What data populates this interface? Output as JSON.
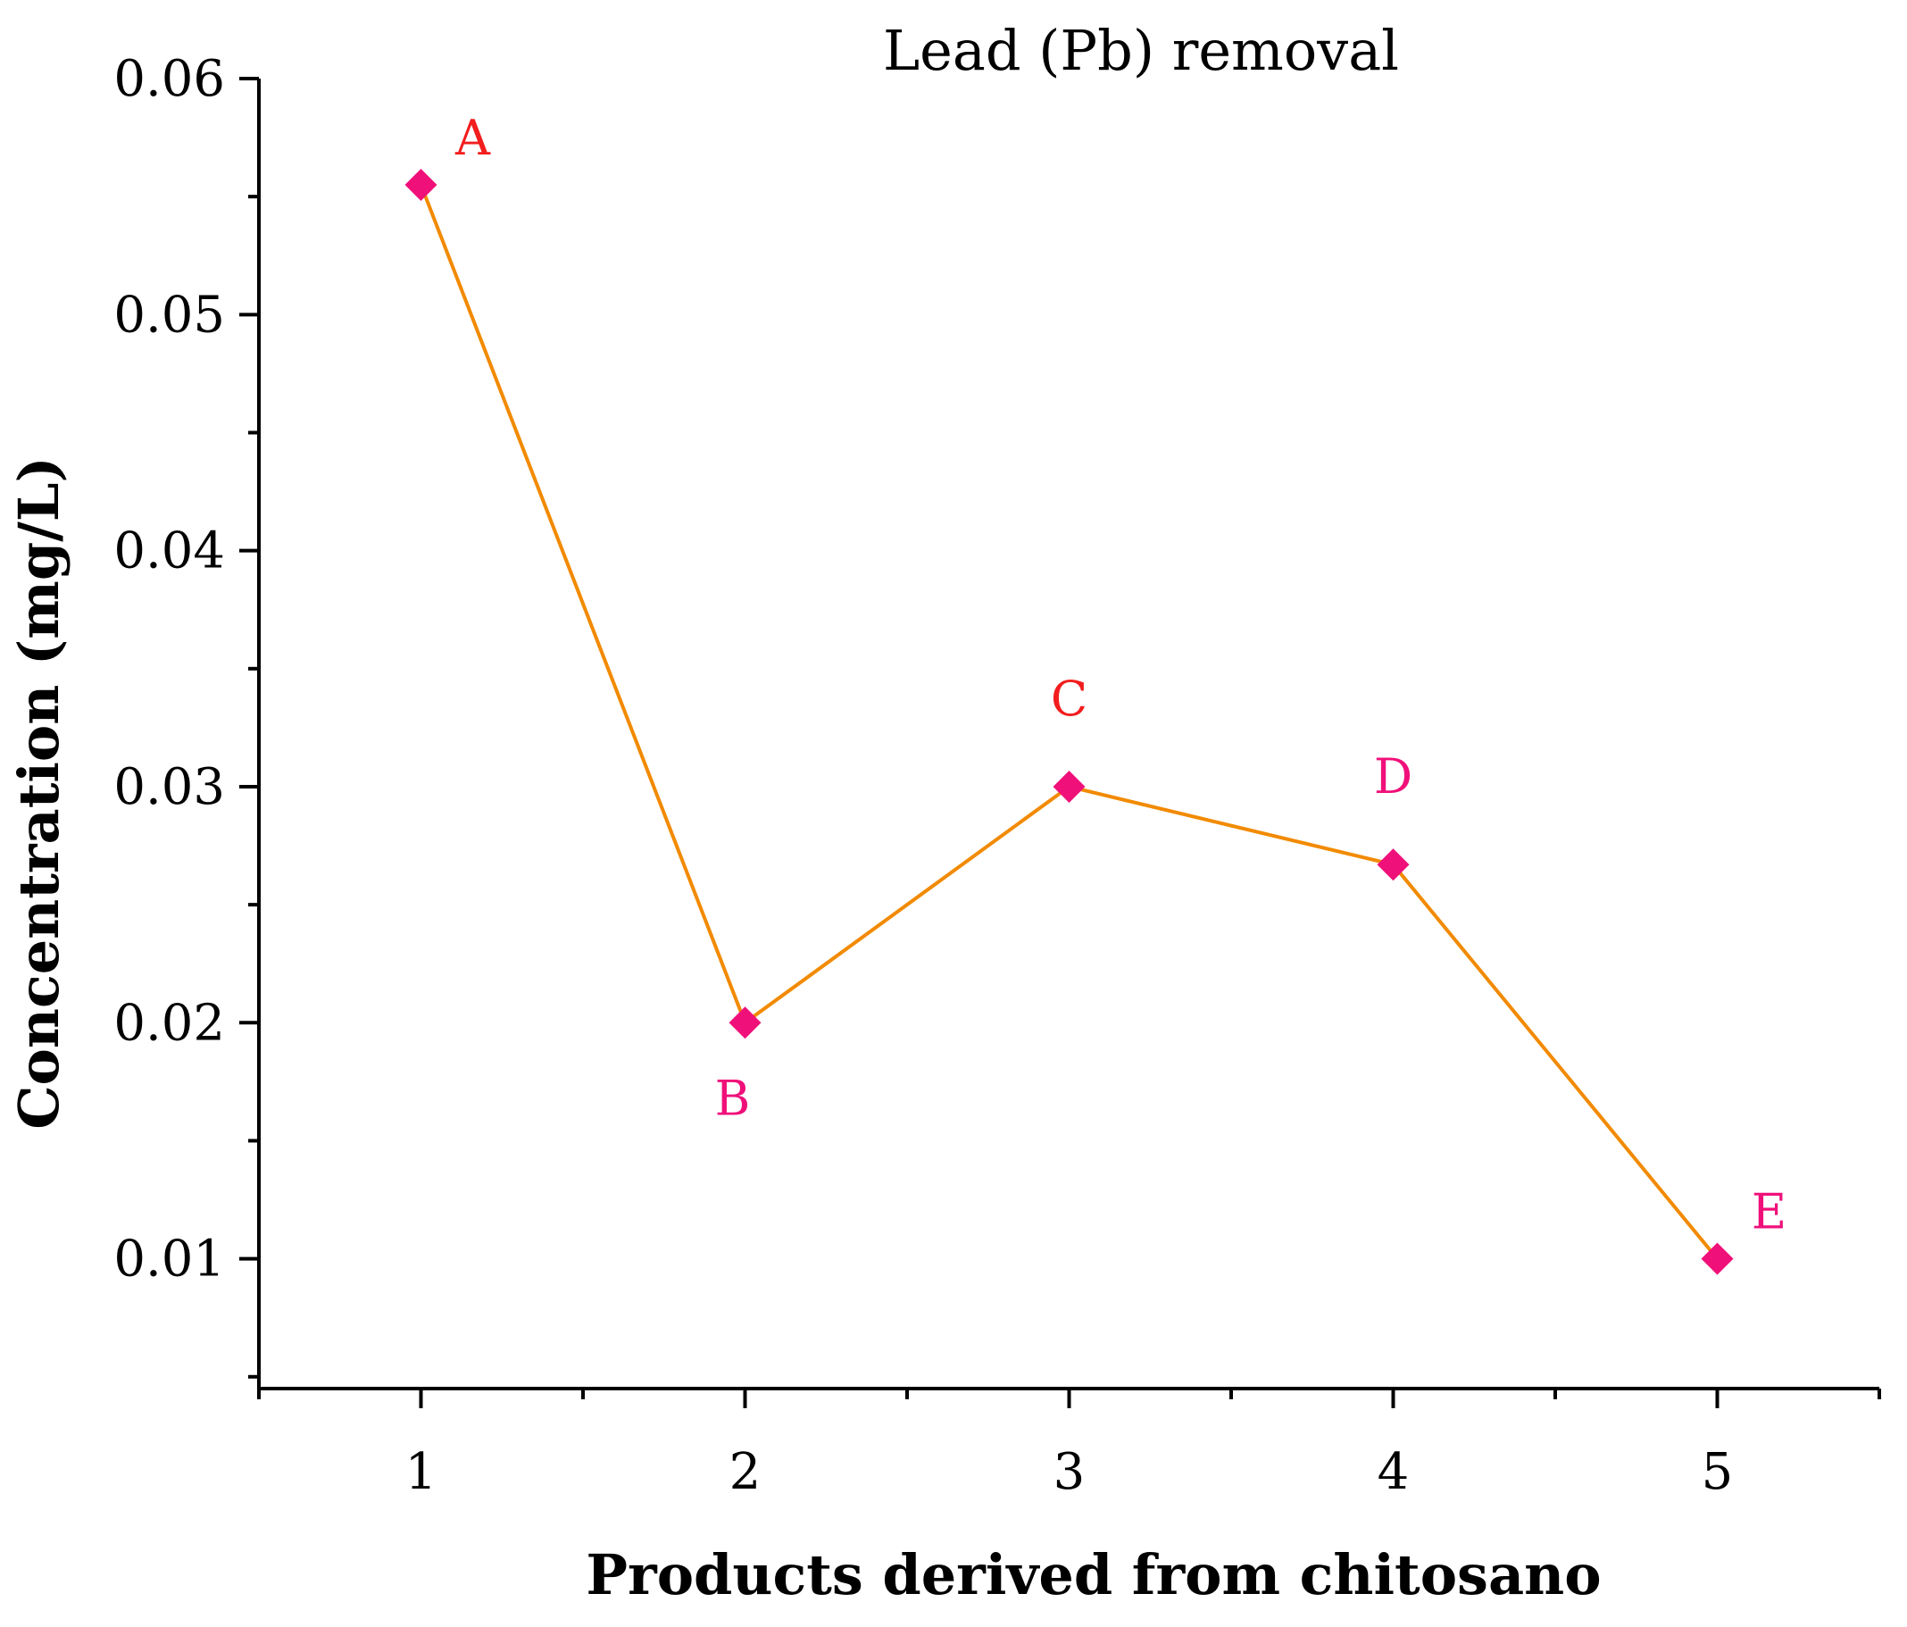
{
  "chart_data": {
    "type": "line",
    "title": "Lead (Pb) removal",
    "xlabel": "Products derived from chitosano",
    "ylabel": "Concentration (mg/L)",
    "x": [
      1,
      2,
      3,
      4,
      5
    ],
    "xlim": [
      0.5,
      5.5
    ],
    "ylim": [
      0.0045,
      0.06
    ],
    "xticks": [
      1,
      2,
      3,
      4,
      5
    ],
    "yticks": [
      0.01,
      0.02,
      0.03,
      0.04,
      0.05,
      0.06
    ],
    "ytick_labels": [
      "0.01",
      "0.02",
      "0.03",
      "0.04",
      "0.05",
      "0.06"
    ],
    "xtick_labels": [
      "1",
      "2",
      "3",
      "4",
      "5"
    ],
    "series": [
      {
        "name": "Lead (Pb)",
        "values": [
          0.0555,
          0.02,
          0.03,
          0.0267,
          0.01
        ],
        "point_labels": [
          "A",
          "B",
          "C",
          "D",
          "E"
        ],
        "label_positions": [
          "above-right",
          "below",
          "above",
          "above",
          "above-right"
        ]
      }
    ],
    "colors": {
      "line": "#f28a00",
      "marker": "#f0107a",
      "label_red": "#f21d1d",
      "label_pink": "#f0107a"
    },
    "label_color_keys": [
      "label_red",
      "label_pink",
      "label_red",
      "label_pink",
      "label_pink"
    ],
    "grid": false,
    "legend": "none"
  }
}
